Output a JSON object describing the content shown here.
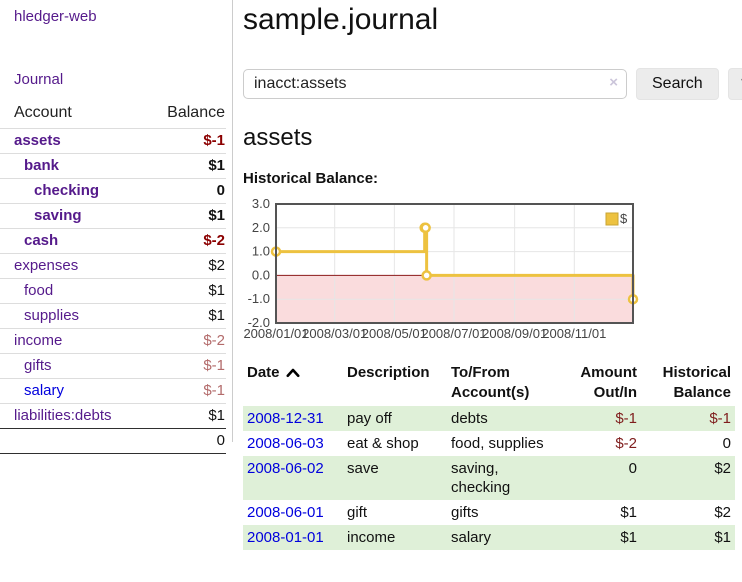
{
  "app": {
    "brand": "hledger-web",
    "nav_journal": "Journal"
  },
  "sidebar": {
    "accounts_header": {
      "account": "Account",
      "balance": "Balance"
    },
    "accounts": [
      {
        "name": "assets",
        "balance": "$-1",
        "depth": 1,
        "bold": true
      },
      {
        "name": "bank",
        "balance": "$1",
        "depth": 2,
        "bold": true
      },
      {
        "name": "checking",
        "balance": "0",
        "depth": 3,
        "bold": true
      },
      {
        "name": "saving",
        "balance": "$1",
        "depth": 3,
        "bold": true
      },
      {
        "name": "cash",
        "balance": "$-2",
        "depth": 2,
        "bold": true
      },
      {
        "name": "expenses",
        "balance": "$2",
        "depth": 1,
        "bold": false
      },
      {
        "name": "food",
        "balance": "$1",
        "depth": 2,
        "bold": false
      },
      {
        "name": "supplies",
        "balance": "$1",
        "depth": 2,
        "bold": false
      },
      {
        "name": "income",
        "balance": "$-2",
        "depth": 1,
        "bold": false
      },
      {
        "name": "gifts",
        "balance": "$-1",
        "depth": 2,
        "bold": false
      },
      {
        "name": "salary",
        "balance": "$-1",
        "depth": 2,
        "bold": false,
        "unvisited": true
      },
      {
        "name": "liabilities:debts",
        "balance": "$1",
        "depth": 1,
        "bold": false
      }
    ],
    "total": "0"
  },
  "main": {
    "title": "sample.journal",
    "search": {
      "value": "inacct:assets",
      "clear_icon": "×",
      "search_button": "Search",
      "help_button": "?"
    },
    "account_heading": "assets",
    "chart_label": "Historical Balance:",
    "register": {
      "columns": [
        {
          "key": "date",
          "label": "Date",
          "align": "left",
          "sortable": true,
          "sort": "asc"
        },
        {
          "key": "desc",
          "label": "Description",
          "align": "left",
          "sortable": false
        },
        {
          "key": "acct",
          "label": "To/From\nAccount(s)",
          "align": "left",
          "sortable": false
        },
        {
          "key": "amt",
          "label": "Amount\nOut/In",
          "align": "right",
          "sortable": false
        },
        {
          "key": "bal",
          "label": "Historical\nBalance",
          "align": "right",
          "sortable": false
        }
      ],
      "rows": [
        {
          "date": "2008-12-31",
          "description": "pay off",
          "accounts": "debts",
          "amount": "$-1",
          "balance": "$-1"
        },
        {
          "date": "2008-06-03",
          "description": "eat & shop",
          "accounts": "food, supplies",
          "amount": "$-2",
          "balance": "0"
        },
        {
          "date": "2008-06-02",
          "description": "save",
          "accounts": "saving, checking",
          "amount": "0",
          "balance": "$2"
        },
        {
          "date": "2008-06-01",
          "description": "gift",
          "accounts": "gifts",
          "amount": "$1",
          "balance": "$2"
        },
        {
          "date": "2008-01-01",
          "description": "income",
          "accounts": "salary",
          "amount": "$1",
          "balance": "$1"
        }
      ]
    }
  },
  "chart_data": {
    "type": "line",
    "title": "Historical Balance of assets",
    "step": true,
    "x_unit": "days since 2008-01-01 (2008 is a leap year)",
    "xlim": [
      0,
      365
    ],
    "ylim": [
      -2,
      3
    ],
    "xticks": [
      0,
      60,
      121,
      182,
      244,
      305
    ],
    "xtick_labels": [
      "2008/01/01",
      "2008/03/01",
      "2008/05/01",
      "2008/07/01",
      "2008/09/01",
      "2008/11/01"
    ],
    "yticks": [
      3,
      2,
      1,
      0,
      -1,
      -2
    ],
    "ytick_labels": [
      "3.0",
      "2.0",
      "1.0",
      "0.0",
      "-1.0",
      "-2.0"
    ],
    "series": [
      {
        "name": "$",
        "color": "#edc240",
        "points": [
          [
            0,
            1
          ],
          [
            152,
            2
          ],
          [
            153,
            2
          ],
          [
            154,
            0
          ],
          [
            365,
            -1
          ]
        ],
        "point_dates": [
          "2008-01-01",
          "2008-06-01",
          "2008-06-02",
          "2008-06-03",
          "2008-12-31"
        ],
        "point_balances": [
          "$1",
          "$2",
          "$2",
          "0",
          "$-1"
        ]
      }
    ],
    "grid": true,
    "legend_position": "top-right",
    "plot_border_color": "#545454",
    "grid_color": "#e6e6e6",
    "tick_label_color": "#444444",
    "negative_region_fill": "#fadcdd",
    "zero_line_color": "#8b1a1a",
    "marker_fill": "#ffffff"
  }
}
